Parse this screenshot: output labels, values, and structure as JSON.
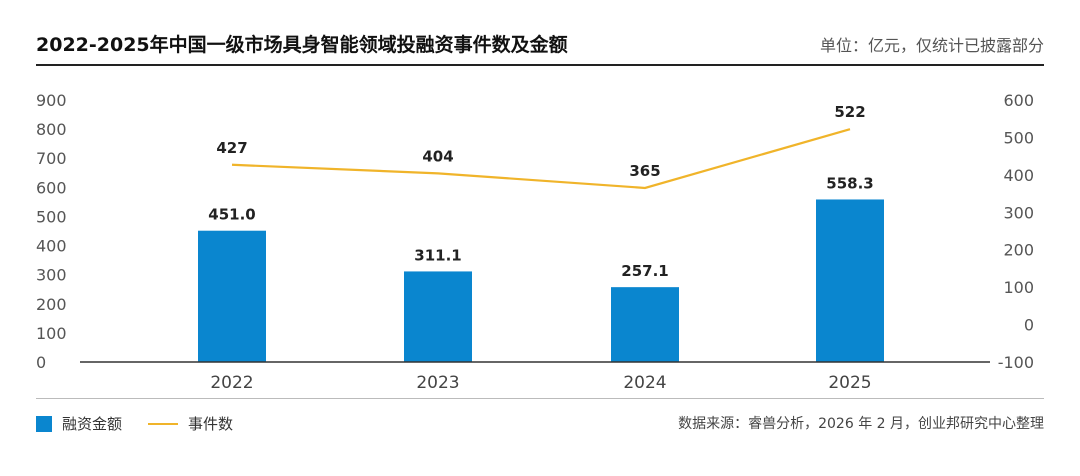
{
  "header": {
    "title": "2022-2025年中国一级市场具身智能领域投融资事件数及金额",
    "unit": "单位：亿元，仅统计已披露部分"
  },
  "legend": {
    "bar_label": "融资金额",
    "line_label": "事件数"
  },
  "footer": {
    "source": "数据来源：睿兽分析，2026 年 2 月，创业邦研究中心整理"
  },
  "colors": {
    "bar": "#0a86cf",
    "line": "#f0b42a"
  },
  "chart_data": {
    "type": "bar",
    "categories": [
      "2022",
      "2023",
      "2024",
      "2025"
    ],
    "series": [
      {
        "name": "融资金额",
        "type": "bar",
        "axis": "left",
        "values": [
          451.0,
          311.1,
          257.1,
          558.3
        ],
        "labels": [
          "451.0",
          "311.1",
          "257.1",
          "558.3"
        ]
      },
      {
        "name": "事件数",
        "type": "line",
        "axis": "right",
        "values": [
          427,
          404,
          365,
          522
        ],
        "labels": [
          "427",
          "404",
          "365",
          "522"
        ]
      }
    ],
    "y_left": {
      "min": 0,
      "max": 900,
      "ticks": [
        "0",
        "100",
        "200",
        "300",
        "400",
        "500",
        "600",
        "700",
        "800",
        "900"
      ]
    },
    "y_right": {
      "min": -100,
      "max": 600,
      "ticks": [
        "-100",
        "0",
        "100",
        "200",
        "300",
        "400",
        "500",
        "600"
      ]
    },
    "grid": false,
    "legend_position": "bottom-left"
  }
}
